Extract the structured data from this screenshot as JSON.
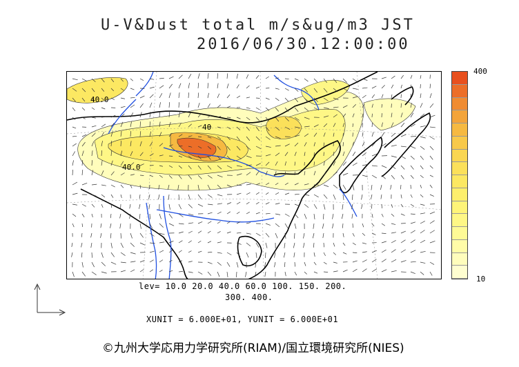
{
  "header": {
    "title_line1": "U-V&Dust total m/s&ug/m3 JST",
    "title_line2": "2016/06/30.12:00:00"
  },
  "colorbar": {
    "max_label": "400",
    "min_label": "10",
    "colors": [
      "#e8501e",
      "#ec6e28",
      "#f08c32",
      "#f3a43a",
      "#f6b941",
      "#f8c94a",
      "#fad652",
      "#fbe05a",
      "#fce862",
      "#fdef6c",
      "#fef478",
      "#fef786",
      "#fefa96",
      "#fffca8",
      "#fffdbc",
      "#fffed0"
    ]
  },
  "contour_labels": [
    "40.0",
    "40.0",
    "40"
  ],
  "footer": {
    "levels_line1": "lev= 10.0 20.0 40.0 60.0 100. 150. 200.",
    "levels_line2": "300. 400.",
    "units": "XUNIT = 6.000E+01, YUNIT = 6.000E+01",
    "copyright": "©九州大学応用力学研究所(RIAM)/国立環境研究所(NIES)"
  },
  "style": {
    "coast_color": "#000000",
    "river_color": "#1f4fe0",
    "grid_color": "#888888"
  }
}
